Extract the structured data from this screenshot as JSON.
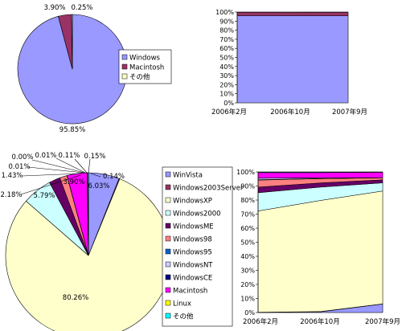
{
  "colors": {
    "windows": "#9999ff",
    "macintosh": "#993366",
    "other_top": "#ffffcc",
    "WinVista": "#9999ff",
    "Windows2003Server": "#993366",
    "WindowsXP": "#ffffcc",
    "Windows2000": "#ccffff",
    "WindowsME": "#660066",
    "Windows98": "#ff8080",
    "Windows95": "#0066cc",
    "WindowsNT": "#ccccff",
    "WindowsCE": "#000080",
    "Macintosh": "#ff00ff",
    "Linux": "#ffff00",
    "other_bottom": "#00ffff"
  },
  "chart_data": [
    {
      "type": "pie",
      "title": "",
      "categories": [
        "Windows",
        "Macintosh",
        "その他"
      ],
      "values": [
        95.85,
        3.9,
        0.25
      ],
      "labels": [
        "95.85%",
        "3.90%",
        "0.25%"
      ],
      "legend": "right"
    },
    {
      "type": "area",
      "title": "",
      "stacked": "percent",
      "x": [
        "2006年2月",
        "2006年10月",
        "2007年9月"
      ],
      "ylim": [
        0,
        100
      ],
      "yticks": [
        "0%",
        "10%",
        "20%",
        "30%",
        "40%",
        "50%",
        "60%",
        "70%",
        "80%",
        "90%",
        "100%"
      ],
      "series": [
        {
          "name": "Windows",
          "values": [
            96.0,
            96.0,
            95.85
          ]
        },
        {
          "name": "Macintosh",
          "values": [
            3.7,
            3.6,
            3.9
          ]
        },
        {
          "name": "その他",
          "values": [
            0.3,
            0.4,
            0.25
          ]
        }
      ],
      "legend": "none"
    },
    {
      "type": "pie",
      "title": "",
      "categories": [
        "WinVista",
        "Windows2003Server",
        "WindowsXP",
        "Windows2000",
        "WindowsME",
        "Windows98",
        "Windows95",
        "WindowsNT",
        "WindowsCE",
        "Macintosh",
        "Linux",
        "その他"
      ],
      "values": [
        6.03,
        0.14,
        80.26,
        5.79,
        2.18,
        1.43,
        0.01,
        0.01,
        0.0,
        3.9,
        0.11,
        0.15
      ],
      "labels": [
        "6.03%",
        "0.14%",
        "80.26%",
        "5.79%",
        "2.18%",
        "1.43%",
        "0.01%",
        "0.01%",
        "0.00%",
        "3.90%",
        "0.11%",
        "0.15%"
      ],
      "legend": "right"
    },
    {
      "type": "area",
      "title": "",
      "stacked": "percent",
      "x": [
        "2006年2月",
        "2006年10月",
        "2007年9月"
      ],
      "ylim": [
        0,
        100
      ],
      "yticks": [
        "0%",
        "10%",
        "20%",
        "30%",
        "40%",
        "50%",
        "60%",
        "70%",
        "80%",
        "90%",
        "100%"
      ],
      "series": [
        {
          "name": "WinVista",
          "values": [
            0.0,
            0.5,
            6.03
          ]
        },
        {
          "name": "Windows2003Server",
          "values": [
            0.2,
            0.2,
            0.14
          ]
        },
        {
          "name": "WindowsXP",
          "values": [
            72.0,
            79.0,
            80.26
          ]
        },
        {
          "name": "Windows2000",
          "values": [
            13.0,
            9.5,
            5.79
          ]
        },
        {
          "name": "WindowsME",
          "values": [
            4.0,
            3.0,
            2.18
          ]
        },
        {
          "name": "Windows98",
          "values": [
            5.0,
            3.0,
            1.43
          ]
        },
        {
          "name": "Windows95",
          "values": [
            0.3,
            0.1,
            0.01
          ]
        },
        {
          "name": "WindowsNT",
          "values": [
            1.0,
            0.5,
            0.01
          ]
        },
        {
          "name": "WindowsCE",
          "values": [
            0.1,
            0.0,
            0.0
          ]
        },
        {
          "name": "Macintosh",
          "values": [
            3.9,
            3.7,
            3.9
          ]
        },
        {
          "name": "Linux",
          "values": [
            0.2,
            0.2,
            0.11
          ]
        },
        {
          "name": "その他",
          "values": [
            0.3,
            0.3,
            0.15
          ]
        }
      ],
      "legend": "none"
    }
  ]
}
